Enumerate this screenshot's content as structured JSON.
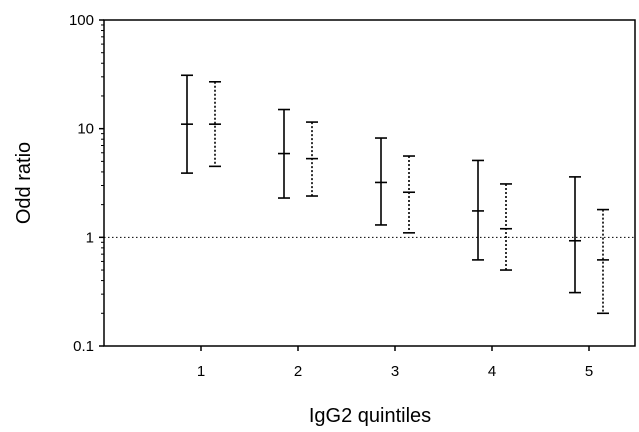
{
  "chart_data": {
    "type": "errorbar",
    "xlabel": "IgG2 quintiles",
    "ylabel": "Odd ratio",
    "yscale": "log",
    "ylim": [
      0.1,
      100
    ],
    "yticks": [
      "0.1",
      "1",
      "10",
      "100"
    ],
    "categories": [
      "1",
      "2",
      "3",
      "4",
      "5"
    ],
    "reference_line": {
      "y": 1,
      "style": "dotted"
    },
    "grid": false,
    "series": [
      {
        "line_style": "solid",
        "points": [
          {
            "x": "1",
            "y": 11.0,
            "low": 3.9,
            "high": 31.0
          },
          {
            "x": "2",
            "y": 5.9,
            "low": 2.3,
            "high": 15.0
          },
          {
            "x": "3",
            "y": 3.2,
            "low": 1.3,
            "high": 8.2
          },
          {
            "x": "4",
            "y": 1.75,
            "low": 0.62,
            "high": 5.1
          },
          {
            "x": "5",
            "y": 0.93,
            "low": 0.31,
            "high": 3.6
          }
        ]
      },
      {
        "line_style": "dotted",
        "points": [
          {
            "x": "1",
            "y": 11.0,
            "low": 4.5,
            "high": 27.0
          },
          {
            "x": "2",
            "y": 5.3,
            "low": 2.4,
            "high": 11.5
          },
          {
            "x": "3",
            "y": 2.6,
            "low": 1.1,
            "high": 5.6
          },
          {
            "x": "4",
            "y": 1.2,
            "low": 0.5,
            "high": 3.1
          },
          {
            "x": "5",
            "y": 0.62,
            "low": 0.2,
            "high": 1.8
          }
        ]
      }
    ]
  }
}
